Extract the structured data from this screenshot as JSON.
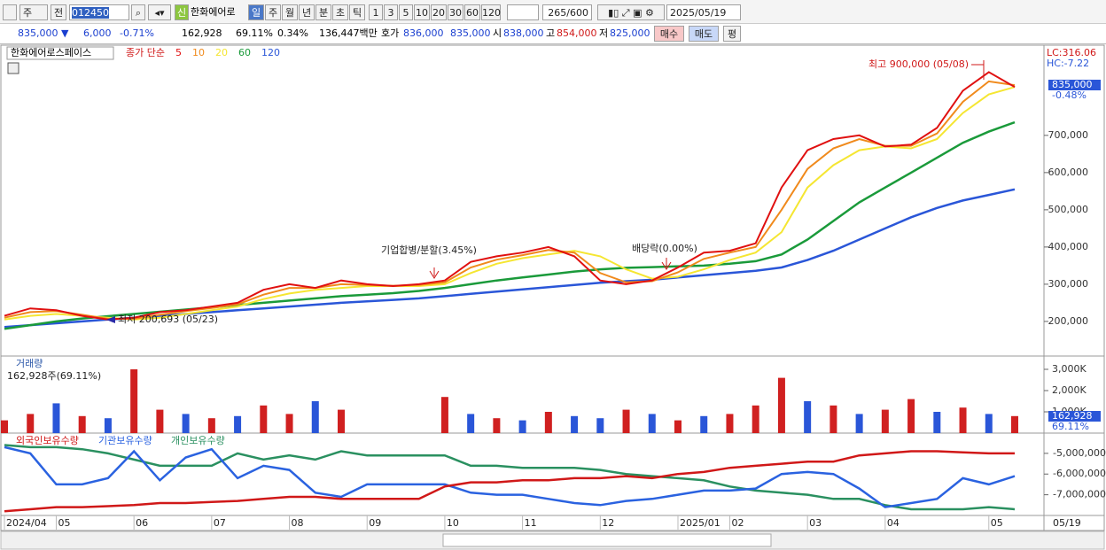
{
  "toolbar": {
    "period": "주",
    "prev": "전",
    "code": "012450",
    "new_badge": "신",
    "name": "한화에어로",
    "intervals": [
      "일",
      "주",
      "월",
      "년",
      "분",
      "초",
      "틱"
    ],
    "minutes": [
      "1",
      "3",
      "5",
      "10",
      "20",
      "30",
      "60",
      "120"
    ],
    "count": "265/600",
    "date": "2025/05/19"
  },
  "quote": {
    "price": "835,000 ▼",
    "change": "6,000",
    "change_rate": "-0.71%",
    "volume": "162,928",
    "volume_rate": "69.11%",
    "turnover": "0.34%",
    "amount": "136,447백만",
    "ask_label": "호가",
    "ask": "836,000",
    "bid": "835,000",
    "open_label": "시",
    "open": "838,000",
    "high_label": "고",
    "high": "854,000",
    "low_label": "저",
    "low": "825,000",
    "buy": "매수",
    "sell": "매도",
    "eval": "평"
  },
  "chart_data": [
    {
      "type": "line",
      "title": "한화에어로스페이스",
      "legend_prefix": "종가 단순",
      "categories": [
        "2024/04",
        null,
        "05",
        null,
        null,
        "06",
        null,
        null,
        "07",
        null,
        null,
        "08",
        null,
        null,
        "09",
        null,
        null,
        "10",
        null,
        null,
        "11",
        null,
        null,
        "12",
        null,
        null,
        "2025/01",
        null,
        "02",
        null,
        null,
        "03",
        null,
        null,
        "04",
        null,
        null,
        null,
        "05",
        null
      ],
      "last_date": "05/19",
      "ylim": [
        107000,
        940000
      ],
      "yticks": [
        {
          "value": 200000,
          "label": "200,000"
        },
        {
          "value": 300000,
          "label": "300,000"
        },
        {
          "value": 400000,
          "label": "400,000"
        },
        {
          "value": 500000,
          "label": "500,000"
        },
        {
          "value": 600000,
          "label": "600,000"
        },
        {
          "value": 700000,
          "label": "700,000"
        }
      ],
      "series": [
        {
          "name": "5",
          "color": "#e01010",
          "values": [
            215,
            235,
            230,
            215,
            205,
            210,
            225,
            230,
            240,
            250,
            285,
            300,
            290,
            310,
            300,
            295,
            300,
            310,
            360,
            375,
            385,
            400,
            375,
            310,
            300,
            310,
            345,
            385,
            390,
            410,
            560,
            660,
            690,
            700,
            670,
            675,
            720,
            820,
            870,
            830
          ]
        },
        {
          "name": "10",
          "color": "#f08a1c",
          "values": [
            210,
            225,
            228,
            218,
            207,
            207,
            218,
            228,
            236,
            246,
            272,
            290,
            290,
            300,
            298,
            296,
            298,
            305,
            345,
            366,
            378,
            392,
            385,
            330,
            305,
            308,
            332,
            368,
            385,
            400,
            500,
            610,
            665,
            690,
            672,
            672,
            705,
            790,
            845,
            835
          ]
        },
        {
          "name": "20",
          "color": "#f5e632",
          "values": [
            205,
            215,
            220,
            215,
            210,
            205,
            210,
            220,
            230,
            240,
            260,
            275,
            285,
            290,
            295,
            295,
            295,
            300,
            330,
            355,
            370,
            380,
            390,
            375,
            340,
            315,
            320,
            340,
            365,
            385,
            440,
            560,
            620,
            660,
            670,
            665,
            690,
            760,
            810,
            830
          ]
        },
        {
          "name": "60",
          "color": "#1a9a3a",
          "values": [
            180,
            190,
            200,
            208,
            214,
            220,
            226,
            232,
            238,
            244,
            250,
            256,
            262,
            268,
            272,
            276,
            282,
            290,
            300,
            310,
            318,
            326,
            334,
            340,
            344,
            346,
            348,
            350,
            355,
            362,
            380,
            420,
            470,
            520,
            560,
            600,
            640,
            680,
            710,
            735
          ]
        },
        {
          "name": "120",
          "color": "#2a56d8",
          "values": [
            185,
            190,
            195,
            200,
            205,
            210,
            215,
            220,
            225,
            230,
            235,
            240,
            245,
            250,
            254,
            258,
            262,
            268,
            274,
            280,
            286,
            292,
            298,
            304,
            308,
            312,
            318,
            324,
            330,
            336,
            345,
            365,
            390,
            420,
            450,
            480,
            505,
            525,
            540,
            555
          ]
        }
      ],
      "value_scale": 1000,
      "labels": {
        "lc": "LC:316.06",
        "hc": "HC:-7.22",
        "last": "835,000",
        "last_rate": "-0.48%"
      },
      "annotations": {
        "high": "최고 900,000 (05/08)",
        "low": "최저 200,693 (05/23)",
        "merger": "기업합병/분할(3.45%)",
        "dividend": "배당락(0.00%)"
      }
    },
    {
      "type": "bar",
      "title": "거래량",
      "subtitle": "162,928주(69.11%)",
      "ylim": [
        0,
        3500
      ],
      "yticks": [
        {
          "value": 1000,
          "label": "1,000K"
        },
        {
          "value": 2000,
          "label": "2,000K"
        },
        {
          "value": 3000,
          "label": "3,000K"
        }
      ],
      "values": [
        600,
        900,
        1400,
        800,
        700,
        3000,
        1100,
        900,
        700,
        800,
        1300,
        900,
        1500,
        1100,
        null,
        null,
        null,
        1700,
        900,
        700,
        600,
        1000,
        800,
        700,
        1100,
        900,
        600,
        800,
        900,
        1300,
        2600,
        1500,
        1300,
        900,
        1100,
        1600,
        1000,
        1200,
        900,
        800
      ],
      "colors": [
        "#d02020",
        "#d02020",
        "#2a56d8",
        "#d02020",
        "#2a56d8",
        "#d02020",
        "#d02020",
        "#2a56d8",
        "#d02020",
        "#2a56d8",
        "#d02020",
        "#d02020",
        "#2a56d8",
        "#d02020",
        "#d02020",
        "#d02020",
        "#d02020",
        "#d02020",
        "#2a56d8",
        "#d02020",
        "#2a56d8",
        "#d02020",
        "#2a56d8",
        "#2a56d8",
        "#d02020",
        "#2a56d8",
        "#d02020",
        "#2a56d8",
        "#d02020",
        "#d02020",
        "#d02020",
        "#2a56d8",
        "#d02020",
        "#2a56d8",
        "#d02020",
        "#d02020",
        "#2a56d8",
        "#d02020",
        "#2a56d8",
        "#d02020"
      ],
      "labels": {
        "last": "162,928",
        "last_rate": "69.11%"
      }
    },
    {
      "type": "line",
      "ylim": [
        -8000000,
        -4150000
      ],
      "yticks": [
        {
          "value": -5000000,
          "label": "-5,000,000"
        },
        {
          "value": -6000000,
          "label": "-6,000,000"
        },
        {
          "value": -7000000,
          "label": "-7,000,000"
        }
      ],
      "series": [
        {
          "name": "외국인보유수량",
          "color": "#d01818",
          "values": [
            -7800000,
            -7700000,
            -7600000,
            -7600000,
            -7550000,
            -7500000,
            -7400000,
            -7400000,
            -7350000,
            -7300000,
            -7200000,
            -7100000,
            -7100000,
            -7200000,
            -7200000,
            -7200000,
            -7200000,
            -6600000,
            -6400000,
            -6400000,
            -6300000,
            -6300000,
            -6200000,
            -6200000,
            -6100000,
            -6200000,
            -6000000,
            -5900000,
            -5700000,
            -5600000,
            -5500000,
            -5400000,
            -5400000,
            -5100000,
            -5000000,
            -4900000,
            -4900000,
            -4950000,
            -5000000,
            -5000000
          ]
        },
        {
          "name": "기관보유수량",
          "color": "#2a62e0",
          "values": [
            -4700000,
            -5000000,
            -6500000,
            -6500000,
            -6200000,
            -4900000,
            -6300000,
            -5200000,
            -4800000,
            -6200000,
            -5600000,
            -5800000,
            -6900000,
            -7100000,
            -6500000,
            -6500000,
            -6500000,
            -6500000,
            -6900000,
            -7000000,
            -7000000,
            -7200000,
            -7400000,
            -7500000,
            -7300000,
            -7200000,
            -7000000,
            -6800000,
            -6800000,
            -6700000,
            -6000000,
            -5900000,
            -6000000,
            -6700000,
            -7600000,
            -7400000,
            -7200000,
            -6200000,
            -6500000,
            -6100000
          ]
        },
        {
          "name": "개인보유수량",
          "color": "#2a9060",
          "values": [
            -4600000,
            -4700000,
            -4700000,
            -4800000,
            -5000000,
            -5300000,
            -5600000,
            -5600000,
            -5600000,
            -5000000,
            -5300000,
            -5100000,
            -5300000,
            -4900000,
            -5100000,
            -5100000,
            -5100000,
            -5100000,
            -5600000,
            -5600000,
            -5700000,
            -5700000,
            -5700000,
            -5800000,
            -6000000,
            -6100000,
            -6200000,
            -6300000,
            -6600000,
            -6800000,
            -6900000,
            -7000000,
            -7200000,
            -7200000,
            -7500000,
            -7700000,
            -7700000,
            -7700000,
            -7600000,
            -7700000
          ]
        }
      ]
    }
  ]
}
